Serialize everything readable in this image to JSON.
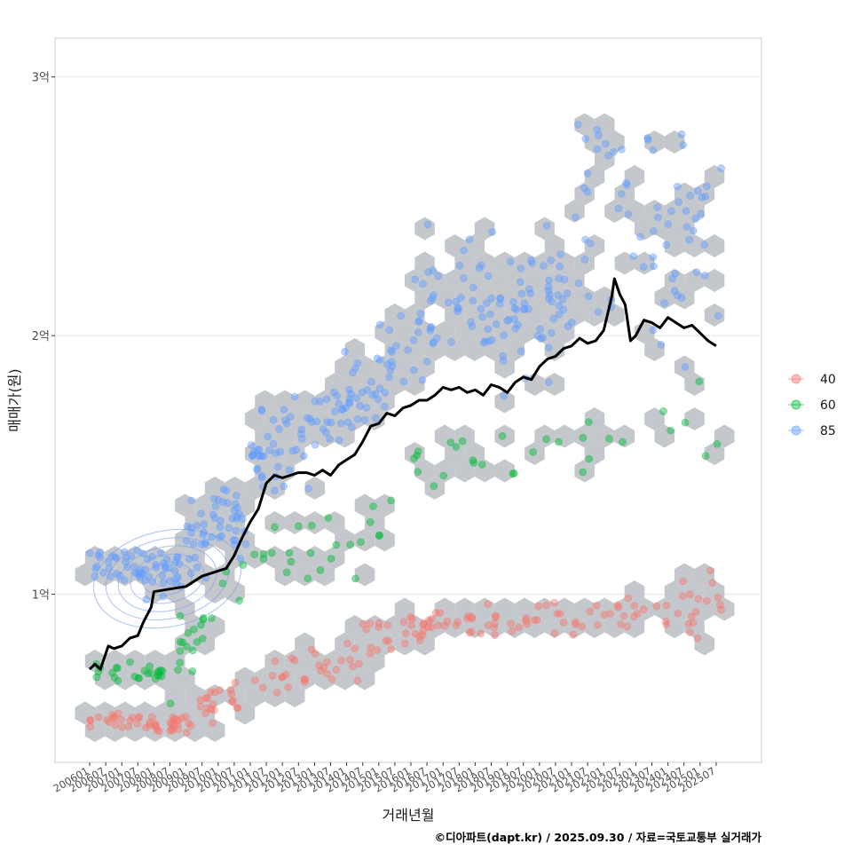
{
  "chart_data": {
    "type": "scatter",
    "title": "",
    "xlabel": "거래년월",
    "ylabel": "매매가(원)",
    "caption": "©디아파트(dapt.kr) / 2025.09.30 / 자료=국토교통부 실거래가",
    "x_range": [
      "200512",
      "202512"
    ],
    "ylim": [
      0.35,
      3.15
    ],
    "y_ticks": [
      {
        "value": 1,
        "label": "1억"
      },
      {
        "value": 2,
        "label": "2억"
      },
      {
        "value": 3,
        "label": "3억"
      }
    ],
    "x_ticks": [
      "200601",
      "200607",
      "200701",
      "200707",
      "200801",
      "200807",
      "200901",
      "200907",
      "201001",
      "201007",
      "201101",
      "201107",
      "201201",
      "201207",
      "201301",
      "201307",
      "201401",
      "201407",
      "201501",
      "201507",
      "201601",
      "201607",
      "201701",
      "201707",
      "201801",
      "201807",
      "201901",
      "201907",
      "202001",
      "202007",
      "202101",
      "202107",
      "202201",
      "202207",
      "202301",
      "202307",
      "202401",
      "202407",
      "202501",
      "202507"
    ],
    "legend": {
      "position": "right",
      "entries": [
        {
          "label": "40",
          "color": "#F8766D"
        },
        {
          "label": "60",
          "color": "#00BA38"
        },
        {
          "label": "85",
          "color": "#619CFF"
        }
      ]
    },
    "hexbin_color": "#C4C8CC",
    "series": [
      {
        "name": "40",
        "color": "#F8766D",
        "kind": "points",
        "segments": [
          {
            "start": "200601",
            "end": "200903",
            "v0": 0.52,
            "v1": 0.5,
            "spread": 0.02,
            "n": 45
          },
          {
            "start": "200904",
            "end": "201012",
            "v0": 0.55,
            "v1": 0.62,
            "spread": 0.03,
            "n": 20
          },
          {
            "start": "201101",
            "end": "201406",
            "v0": 0.65,
            "v1": 0.76,
            "spread": 0.04,
            "n": 30
          },
          {
            "start": "201407",
            "end": "201606",
            "v0": 0.8,
            "v1": 0.88,
            "spread": 0.04,
            "n": 25
          },
          {
            "start": "201607",
            "end": "202012",
            "v0": 0.88,
            "v1": 0.92,
            "spread": 0.03,
            "n": 40
          },
          {
            "start": "202101",
            "end": "202509",
            "v0": 0.92,
            "v1": 0.95,
            "spread": 0.05,
            "n": 40
          }
        ]
      },
      {
        "name": "60",
        "color": "#00BA38",
        "kind": "points",
        "segments": [
          {
            "start": "200601",
            "end": "200806",
            "v0": 0.7,
            "v1": 0.7,
            "spread": 0.02,
            "n": 25
          },
          {
            "start": "200807",
            "end": "200912",
            "v0": 0.75,
            "v1": 0.9,
            "spread": 0.05,
            "n": 18
          },
          {
            "start": "201001",
            "end": "201206",
            "v0": 1.0,
            "v1": 1.2,
            "spread": 0.06,
            "n": 12
          },
          {
            "start": "201207",
            "end": "201512",
            "v0": 1.1,
            "v1": 1.32,
            "spread": 0.06,
            "n": 16
          },
          {
            "start": "201601",
            "end": "202012",
            "v0": 1.5,
            "v1": 1.55,
            "spread": 0.07,
            "n": 18
          },
          {
            "start": "202101",
            "end": "202509",
            "v0": 1.6,
            "v1": 1.6,
            "spread": 0.08,
            "n": 12
          }
        ]
      },
      {
        "name": "85",
        "color": "#619CFF",
        "kind": "points",
        "segments": [
          {
            "start": "200601",
            "end": "200812",
            "v0": 1.12,
            "v1": 1.08,
            "spread": 0.04,
            "n": 60
          },
          {
            "start": "200901",
            "end": "201012",
            "v0": 1.2,
            "v1": 1.3,
            "spread": 0.07,
            "n": 50
          },
          {
            "start": "201101",
            "end": "201212",
            "v0": 1.5,
            "v1": 1.62,
            "spread": 0.08,
            "n": 45
          },
          {
            "start": "201301",
            "end": "201512",
            "v0": 1.62,
            "v1": 1.95,
            "spread": 0.1,
            "n": 60
          },
          {
            "start": "201601",
            "end": "202012",
            "v0": 2.05,
            "v1": 2.15,
            "spread": 0.12,
            "n": 110
          },
          {
            "start": "202101",
            "end": "202509",
            "v0": 2.45,
            "v1": 2.4,
            "spread": 0.22,
            "n": 70
          }
        ]
      },
      {
        "name": "trend",
        "color": "#000000",
        "kind": "line",
        "points": [
          [
            "200601",
            0.71
          ],
          [
            "200603",
            0.73
          ],
          [
            "200605",
            0.71
          ],
          [
            "200608",
            0.8
          ],
          [
            "200610",
            0.79
          ],
          [
            "200701",
            0.8
          ],
          [
            "200704",
            0.83
          ],
          [
            "200707",
            0.84
          ],
          [
            "200709",
            0.89
          ],
          [
            "200712",
            0.95
          ],
          [
            "200801",
            1.01
          ],
          [
            "200807",
            1.02
          ],
          [
            "200901",
            1.03
          ],
          [
            "200907",
            1.07
          ],
          [
            "201001",
            1.09
          ],
          [
            "201004",
            1.1
          ],
          [
            "201007",
            1.15
          ],
          [
            "201010",
            1.22
          ],
          [
            "201101",
            1.28
          ],
          [
            "201104",
            1.33
          ],
          [
            "201107",
            1.43
          ],
          [
            "201110",
            1.46
          ],
          [
            "201201",
            1.45
          ],
          [
            "201204",
            1.46
          ],
          [
            "201207",
            1.47
          ],
          [
            "201210",
            1.47
          ],
          [
            "201301",
            1.46
          ],
          [
            "201304",
            1.48
          ],
          [
            "201307",
            1.46
          ],
          [
            "201310",
            1.5
          ],
          [
            "201401",
            1.52
          ],
          [
            "201404",
            1.54
          ],
          [
            "201407",
            1.59
          ],
          [
            "201410",
            1.65
          ],
          [
            "201501",
            1.66
          ],
          [
            "201504",
            1.7
          ],
          [
            "201507",
            1.69
          ],
          [
            "201510",
            1.72
          ],
          [
            "201601",
            1.73
          ],
          [
            "201604",
            1.75
          ],
          [
            "201607",
            1.75
          ],
          [
            "201610",
            1.77
          ],
          [
            "201701",
            1.8
          ],
          [
            "201704",
            1.79
          ],
          [
            "201707",
            1.8
          ],
          [
            "201710",
            1.78
          ],
          [
            "201801",
            1.79
          ],
          [
            "201804",
            1.77
          ],
          [
            "201807",
            1.81
          ],
          [
            "201810",
            1.8
          ],
          [
            "201901",
            1.78
          ],
          [
            "201904",
            1.82
          ],
          [
            "201907",
            1.84
          ],
          [
            "201910",
            1.83
          ],
          [
            "202001",
            1.88
          ],
          [
            "202004",
            1.91
          ],
          [
            "202007",
            1.92
          ],
          [
            "202010",
            1.95
          ],
          [
            "202101",
            1.96
          ],
          [
            "202104",
            1.99
          ],
          [
            "202107",
            1.97
          ],
          [
            "202110",
            1.98
          ],
          [
            "202201",
            2.02
          ],
          [
            "202204",
            2.15
          ],
          [
            "202205",
            2.22
          ],
          [
            "202207",
            2.16
          ],
          [
            "202209",
            2.12
          ],
          [
            "202211",
            1.98
          ],
          [
            "202301",
            2.0
          ],
          [
            "202304",
            2.06
          ],
          [
            "202307",
            2.05
          ],
          [
            "202310",
            2.03
          ],
          [
            "202401",
            2.07
          ],
          [
            "202404",
            2.05
          ],
          [
            "202407",
            2.03
          ],
          [
            "202410",
            2.04
          ],
          [
            "202501",
            2.01
          ],
          [
            "202504",
            1.98
          ],
          [
            "202507",
            1.96
          ]
        ]
      }
    ],
    "density_contour": {
      "series": "85",
      "center": [
        "200806",
        1.06
      ],
      "levels": 6
    }
  }
}
